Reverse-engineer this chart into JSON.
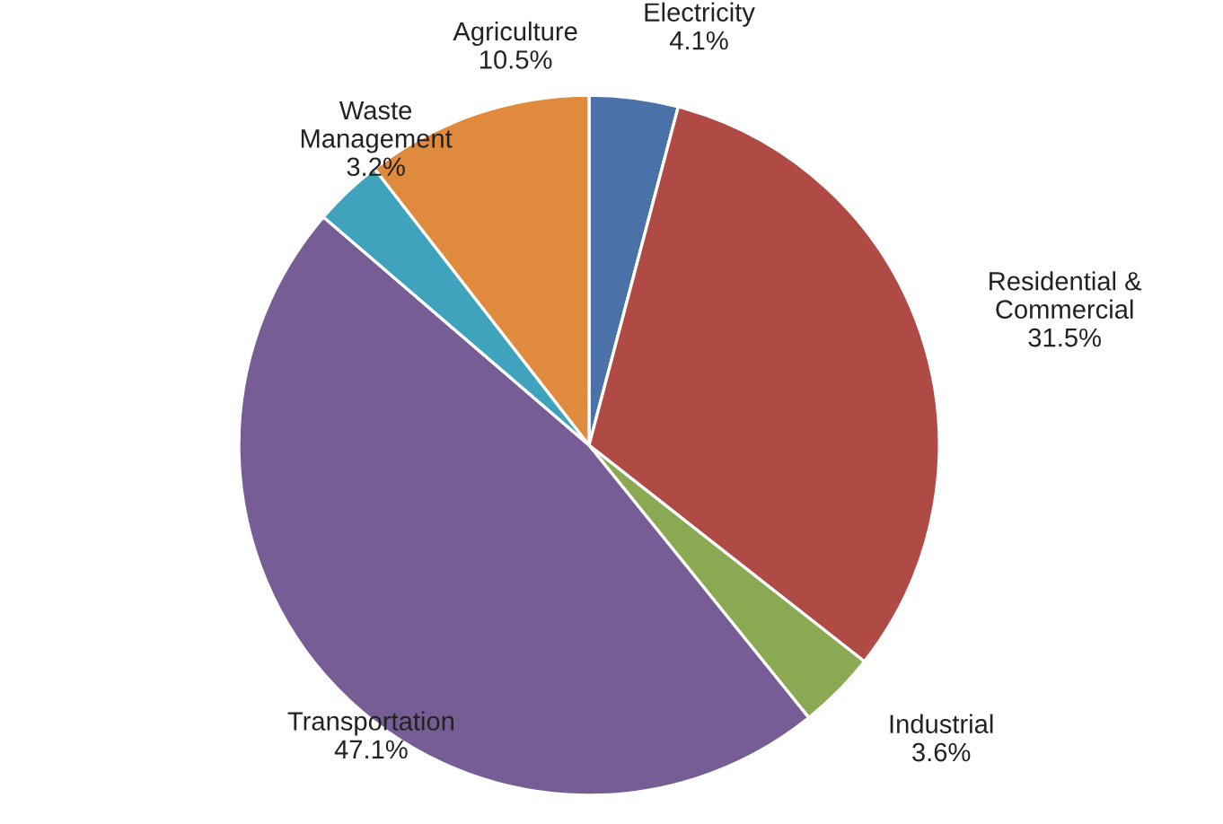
{
  "chart_data": {
    "type": "pie",
    "categories": [
      "Electricity",
      "Residential &\nCommercial",
      "Industrial",
      "Transportation",
      "Waste\nManagement",
      "Agriculture"
    ],
    "values": [
      4.1,
      31.5,
      3.6,
      47.1,
      3.2,
      10.5
    ],
    "value_labels": [
      "4.1%",
      "31.5%",
      "3.6%",
      "47.1%",
      "3.2%",
      "10.5%"
    ],
    "colors": [
      "#4a72a8",
      "#b04a45",
      "#8aa952",
      "#775d96",
      "#3fa3bd",
      "#e08a3e"
    ],
    "legend": false
  }
}
